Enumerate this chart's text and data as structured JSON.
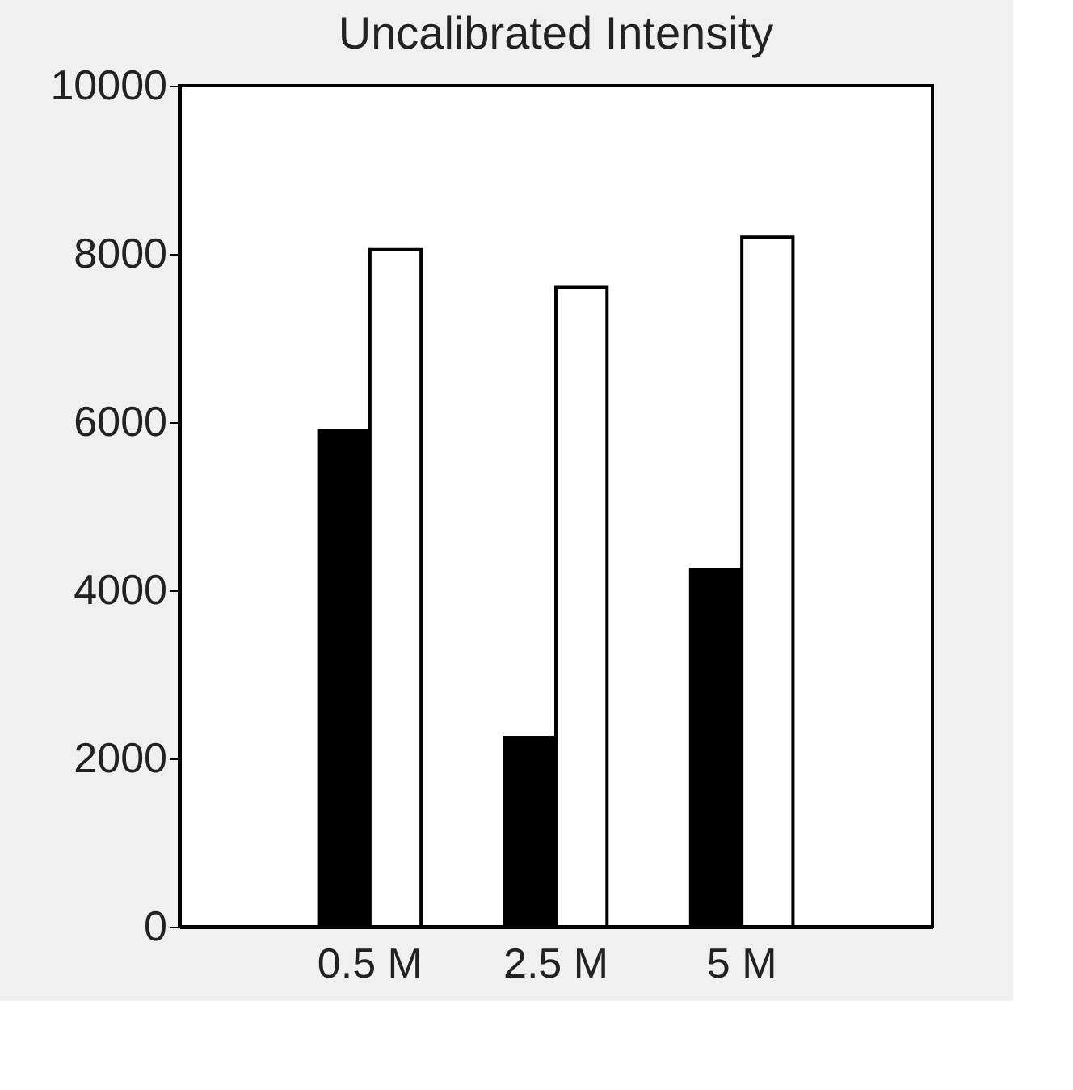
{
  "chart_data": {
    "type": "bar",
    "title": "Uncalibrated Intensity",
    "categories": [
      "0.5 M",
      "2.5 M",
      "5 M"
    ],
    "series": [
      {
        "color": "#000000",
        "values": [
          5900,
          2250,
          4250
        ]
      },
      {
        "color": "#ffffff",
        "values": [
          8050,
          7600,
          8200
        ]
      }
    ],
    "ylim": [
      0,
      10000
    ],
    "yticks": [
      0,
      2000,
      4000,
      6000,
      8000,
      10000
    ],
    "grid": false
  }
}
